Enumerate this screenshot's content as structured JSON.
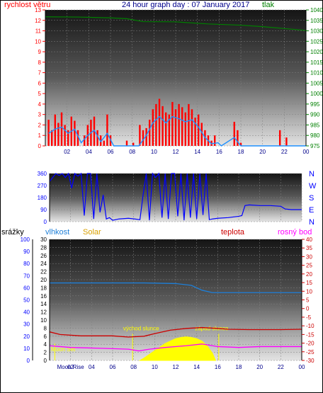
{
  "colors": {
    "wind": "#ff0000",
    "gust": "#ff0000",
    "avg_wind": "#1e90ff",
    "pressure": "#008000",
    "direction": "#0000ff",
    "rain": "#0000ff",
    "humidity": "#1e7fd8",
    "solar": "#ffff00",
    "temperature": "#cc0000",
    "dewpoint": "#ff00ff",
    "title": "#00008b",
    "grid": "#808080",
    "event_marker": "#ffff00"
  },
  "chart_data": [
    {
      "type": "bar",
      "title": "24 hour graph day : 07 January 2017",
      "left_label": "rychlost větru",
      "right_label": "tlak",
      "x_ticks": [
        "02",
        "04",
        "06",
        "08",
        "10",
        "12",
        "14",
        "16",
        "18",
        "20",
        "22",
        "00"
      ],
      "left_ticks": [
        "0",
        "1",
        "2",
        "3",
        "4",
        "5",
        "6",
        "7",
        "8",
        "9",
        "10",
        "11",
        "12",
        "13"
      ],
      "right_ticks": [
        "975",
        "980",
        "985",
        "990",
        "995",
        "1000",
        "1005",
        "1010",
        "1015",
        "1020",
        "1025",
        "1030",
        "1035",
        "1040"
      ],
      "ylim_left": [
        0,
        13
      ],
      "ylim_right": [
        975,
        1040
      ],
      "xlim_hours": [
        0,
        24
      ],
      "wind_gust": [
        [
          0.3,
          2.5
        ],
        [
          0.6,
          1.5
        ],
        [
          0.9,
          3
        ],
        [
          1.2,
          2.2
        ],
        [
          1.5,
          3.2
        ],
        [
          1.8,
          2
        ],
        [
          2.1,
          1.5
        ],
        [
          2.4,
          2.8
        ],
        [
          2.7,
          2.4
        ],
        [
          3.0,
          1.5
        ],
        [
          3.3,
          0
        ],
        [
          3.6,
          1
        ],
        [
          3.9,
          2
        ],
        [
          4.2,
          2.5
        ],
        [
          4.5,
          2.8
        ],
        [
          4.8,
          1.5
        ],
        [
          5.1,
          1
        ],
        [
          5.4,
          0.5
        ],
        [
          5.7,
          3
        ],
        [
          6.0,
          1
        ],
        [
          6.3,
          0
        ],
        [
          7.5,
          0.5
        ],
        [
          8.1,
          0.3
        ],
        [
          8.6,
          0
        ],
        [
          8.7,
          2
        ],
        [
          9.0,
          1.5
        ],
        [
          9.3,
          1.7
        ],
        [
          9.6,
          2.5
        ],
        [
          9.9,
          3.5
        ],
        [
          10.2,
          4
        ],
        [
          10.5,
          4.5
        ],
        [
          10.8,
          3.8
        ],
        [
          11.1,
          3.2
        ],
        [
          11.4,
          3
        ],
        [
          11.7,
          4.2
        ],
        [
          12.0,
          3.5
        ],
        [
          12.3,
          4
        ],
        [
          12.6,
          3.7
        ],
        [
          12.9,
          3.2
        ],
        [
          13.2,
          4
        ],
        [
          13.5,
          3.5
        ],
        [
          13.8,
          2.7
        ],
        [
          14.1,
          3
        ],
        [
          14.4,
          2.2
        ],
        [
          14.7,
          1.5
        ],
        [
          15.0,
          1
        ],
        [
          15.3,
          0.5
        ],
        [
          15.6,
          1
        ],
        [
          16.2,
          0
        ],
        [
          17.4,
          2.3
        ],
        [
          17.7,
          1.5
        ],
        [
          18.0,
          0.3
        ],
        [
          18.6,
          0
        ],
        [
          19.5,
          0
        ],
        [
          20.4,
          0
        ],
        [
          21.6,
          1.5
        ],
        [
          22.2,
          0.8
        ],
        [
          22.8,
          0
        ]
      ],
      "avg_wind": [
        [
          0.3,
          1.2
        ],
        [
          0.9,
          1.6
        ],
        [
          1.5,
          1.8
        ],
        [
          2.1,
          1.2
        ],
        [
          2.7,
          1.6
        ],
        [
          3.3,
          0.3
        ],
        [
          3.9,
          1
        ],
        [
          4.5,
          1.5
        ],
        [
          5.1,
          0.4
        ],
        [
          5.7,
          1.2
        ],
        [
          6.3,
          0
        ],
        [
          8.6,
          0
        ],
        [
          9.3,
          1
        ],
        [
          9.9,
          2.2
        ],
        [
          10.5,
          2.8
        ],
        [
          11.1,
          2.2
        ],
        [
          11.7,
          2.8
        ],
        [
          12.3,
          2.6
        ],
        [
          12.9,
          2.3
        ],
        [
          13.5,
          2.5
        ],
        [
          14.1,
          1.8
        ],
        [
          14.7,
          0.8
        ],
        [
          15.3,
          0.2
        ],
        [
          15.9,
          0.3
        ],
        [
          16.2,
          0
        ],
        [
          17.4,
          0.8
        ],
        [
          18.0,
          0
        ],
        [
          24.0,
          0
        ]
      ],
      "pressure": [
        [
          0,
          1036.7
        ],
        [
          3,
          1036.6
        ],
        [
          6,
          1036.2
        ],
        [
          7.5,
          1035.8
        ],
        [
          9,
          1034.4
        ],
        [
          12,
          1034.3
        ],
        [
          15,
          1033.3
        ],
        [
          18,
          1032.7
        ],
        [
          20,
          1032
        ],
        [
          22,
          1031.1
        ],
        [
          24,
          1030.2
        ]
      ]
    },
    {
      "type": "scatter",
      "left_ticks": [
        "0",
        "90",
        "180",
        "270",
        "360"
      ],
      "right_ticks": [
        "N",
        "W",
        "S",
        "E",
        "N"
      ],
      "ylim": [
        0,
        360
      ],
      "direction": [
        [
          0,
          300
        ],
        [
          0.3,
          330
        ],
        [
          0.6,
          360
        ],
        [
          0.9,
          345
        ],
        [
          1.2,
          360
        ],
        [
          1.5,
          330
        ],
        [
          1.8,
          360
        ],
        [
          2.1,
          250
        ],
        [
          2.4,
          360
        ],
        [
          2.7,
          340
        ],
        [
          3.0,
          360
        ],
        [
          3.3,
          45
        ],
        [
          3.6,
          360
        ],
        [
          3.9,
          360
        ],
        [
          4.2,
          20
        ],
        [
          4.5,
          360
        ],
        [
          4.8,
          70
        ],
        [
          5.1,
          200
        ],
        [
          5.4,
          20
        ],
        [
          5.7,
          30
        ],
        [
          6.0,
          10
        ],
        [
          6.6,
          20
        ],
        [
          7.5,
          25
        ],
        [
          8.1,
          20
        ],
        [
          8.6,
          15
        ],
        [
          8.9,
          200
        ],
        [
          9.2,
          360
        ],
        [
          9.5,
          10
        ],
        [
          9.8,
          360
        ],
        [
          10.1,
          330
        ],
        [
          10.4,
          360
        ],
        [
          10.7,
          30
        ],
        [
          11.0,
          360
        ],
        [
          11.3,
          20
        ],
        [
          11.6,
          360
        ],
        [
          11.9,
          360
        ],
        [
          12.2,
          40
        ],
        [
          12.5,
          360
        ],
        [
          12.8,
          10
        ],
        [
          13.1,
          360
        ],
        [
          13.4,
          30
        ],
        [
          13.7,
          360
        ],
        [
          14.0,
          20
        ],
        [
          14.3,
          360
        ],
        [
          14.6,
          50
        ],
        [
          14.9,
          360
        ],
        [
          15.2,
          15
        ],
        [
          15.5,
          20
        ],
        [
          16.0,
          25
        ],
        [
          17.0,
          30
        ],
        [
          18.0,
          40
        ],
        [
          18.3,
          45
        ],
        [
          18.6,
          120
        ],
        [
          19.0,
          125
        ],
        [
          20.0,
          120
        ],
        [
          21.0,
          120
        ],
        [
          22.0,
          115
        ],
        [
          22.4,
          95
        ],
        [
          23.0,
          90
        ],
        [
          24.0,
          90
        ]
      ]
    },
    {
      "type": "line",
      "labels": {
        "rain": "srážky",
        "humidity": "vlhkost",
        "solar": "Solar",
        "temperature": "teplota",
        "dewpoint": "rosný bod"
      },
      "x_ticks": [
        "02",
        "04",
        "06",
        "08",
        "10",
        "12",
        "14",
        "16",
        "18",
        "20",
        "22",
        "00"
      ],
      "rain_ticks": [
        "0",
        "10",
        "20",
        "30",
        "40",
        "50",
        "60",
        "70",
        "80",
        "90",
        "100"
      ],
      "left2_ticks": [
        "0",
        "2",
        "4",
        "6",
        "8",
        "10",
        "12",
        "14",
        "16",
        "18",
        "20",
        "22",
        "24",
        "26",
        "28",
        "30"
      ],
      "temp_ticks": [
        "-30",
        "-25",
        "-20",
        "-15",
        "-10",
        "-5",
        "0",
        "5",
        "10",
        "15",
        "20",
        "25",
        "30",
        "35",
        "40"
      ],
      "ylim_left": [
        0,
        100
      ],
      "ylim_temp": [
        -30,
        40
      ],
      "events": [
        {
          "label": "východ slunce",
          "hour": 7.9
        },
        {
          "label": "západ slunce",
          "hour": 16.1
        },
        {
          "label": "Moon Set",
          "hour": 0.5
        },
        {
          "label": "Moon Rise",
          "hour": 2.4
        }
      ],
      "humidity": [
        [
          0,
          64
        ],
        [
          6,
          64
        ],
        [
          9,
          64
        ],
        [
          12,
          63.5
        ],
        [
          13.5,
          62
        ],
        [
          14.5,
          58
        ],
        [
          15.5,
          56
        ],
        [
          18,
          56
        ],
        [
          24,
          56
        ]
      ],
      "temperature": [
        [
          0,
          -13.5
        ],
        [
          1,
          -15
        ],
        [
          3,
          -15.8
        ],
        [
          6,
          -15.8
        ],
        [
          7.5,
          -16.5
        ],
        [
          9,
          -16
        ],
        [
          10,
          -14.5
        ],
        [
          11.5,
          -12.5
        ],
        [
          13,
          -11.5
        ],
        [
          14.5,
          -11
        ],
        [
          16,
          -11.5
        ],
        [
          17,
          -12
        ],
        [
          19,
          -12.2
        ],
        [
          22,
          -12.2
        ],
        [
          24,
          -12
        ]
      ],
      "dewpoint": [
        [
          0,
          -21.5
        ],
        [
          2,
          -22.5
        ],
        [
          5,
          -23
        ],
        [
          7.5,
          -23.5
        ],
        [
          8.5,
          -24.5
        ],
        [
          9.5,
          -23.5
        ],
        [
          11,
          -22.5
        ],
        [
          13,
          -21.5
        ],
        [
          14.5,
          -20.5
        ],
        [
          16,
          -22
        ],
        [
          18,
          -22.5
        ],
        [
          20,
          -22
        ],
        [
          24,
          -22
        ]
      ],
      "solar": [
        [
          8.6,
          0
        ],
        [
          9.0,
          2
        ],
        [
          9.5,
          5
        ],
        [
          10,
          8
        ],
        [
          10.5,
          11
        ],
        [
          11,
          14
        ],
        [
          11.5,
          16
        ],
        [
          12,
          18
        ],
        [
          12.5,
          19
        ],
        [
          13,
          19.5
        ],
        [
          13.5,
          19
        ],
        [
          14,
          18
        ],
        [
          14.5,
          16
        ],
        [
          15,
          12
        ],
        [
          15.5,
          6
        ],
        [
          15.8,
          0
        ]
      ]
    }
  ]
}
